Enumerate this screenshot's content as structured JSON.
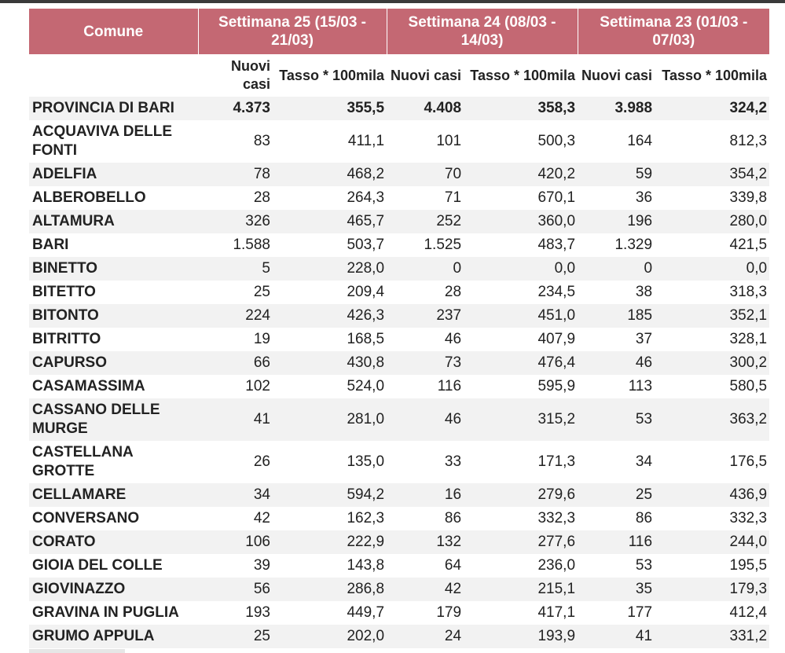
{
  "table": {
    "header": {
      "comune_label": "Comune",
      "weeks": [
        "Settimana 25 (15/03 - 21/03)",
        "Settimana 24 (08/03 - 14/03)",
        "Settimana 23 (01/03 - 07/03)"
      ],
      "new_cases_label": "Nuovi casi",
      "rate_label": "Tasso * 100mila"
    },
    "rows": [
      {
        "name": "PROVINCIA DI BARI",
        "w25_cases": "4.373",
        "w25_rate": "355,5",
        "w24_cases": "4.408",
        "w24_rate": "358,3",
        "w23_cases": "3.988",
        "w23_rate": "324,2"
      },
      {
        "name": "ACQUAVIVA DELLE FONTI",
        "w25_cases": "83",
        "w25_rate": "411,1",
        "w24_cases": "101",
        "w24_rate": "500,3",
        "w23_cases": "164",
        "w23_rate": "812,3"
      },
      {
        "name": "ADELFIA",
        "w25_cases": "78",
        "w25_rate": "468,2",
        "w24_cases": "70",
        "w24_rate": "420,2",
        "w23_cases": "59",
        "w23_rate": "354,2"
      },
      {
        "name": "ALBEROBELLO",
        "w25_cases": "28",
        "w25_rate": "264,3",
        "w24_cases": "71",
        "w24_rate": "670,1",
        "w23_cases": "36",
        "w23_rate": "339,8"
      },
      {
        "name": "ALTAMURA",
        "w25_cases": "326",
        "w25_rate": "465,7",
        "w24_cases": "252",
        "w24_rate": "360,0",
        "w23_cases": "196",
        "w23_rate": "280,0"
      },
      {
        "name": "BARI",
        "w25_cases": "1.588",
        "w25_rate": "503,7",
        "w24_cases": "1.525",
        "w24_rate": "483,7",
        "w23_cases": "1.329",
        "w23_rate": "421,5"
      },
      {
        "name": "BINETTO",
        "w25_cases": "5",
        "w25_rate": "228,0",
        "w24_cases": "0",
        "w24_rate": "0,0",
        "w23_cases": "0",
        "w23_rate": "0,0"
      },
      {
        "name": "BITETTO",
        "w25_cases": "25",
        "w25_rate": "209,4",
        "w24_cases": "28",
        "w24_rate": "234,5",
        "w23_cases": "38",
        "w23_rate": "318,3"
      },
      {
        "name": "BITONTO",
        "w25_cases": "224",
        "w25_rate": "426,3",
        "w24_cases": "237",
        "w24_rate": "451,0",
        "w23_cases": "185",
        "w23_rate": "352,1"
      },
      {
        "name": "BITRITTO",
        "w25_cases": "19",
        "w25_rate": "168,5",
        "w24_cases": "46",
        "w24_rate": "407,9",
        "w23_cases": "37",
        "w23_rate": "328,1"
      },
      {
        "name": "CAPURSO",
        "w25_cases": "66",
        "w25_rate": "430,8",
        "w24_cases": "73",
        "w24_rate": "476,4",
        "w23_cases": "46",
        "w23_rate": "300,2"
      },
      {
        "name": "CASAMASSIMA",
        "w25_cases": "102",
        "w25_rate": "524,0",
        "w24_cases": "116",
        "w24_rate": "595,9",
        "w23_cases": "113",
        "w23_rate": "580,5"
      },
      {
        "name": "CASSANO DELLE MURGE",
        "w25_cases": "41",
        "w25_rate": "281,0",
        "w24_cases": "46",
        "w24_rate": "315,2",
        "w23_cases": "53",
        "w23_rate": "363,2"
      },
      {
        "name": "CASTELLANA GROTTE",
        "w25_cases": "26",
        "w25_rate": "135,0",
        "w24_cases": "33",
        "w24_rate": "171,3",
        "w23_cases": "34",
        "w23_rate": "176,5"
      },
      {
        "name": "CELLAMARE",
        "w25_cases": "34",
        "w25_rate": "594,2",
        "w24_cases": "16",
        "w24_rate": "279,6",
        "w23_cases": "25",
        "w23_rate": "436,9"
      },
      {
        "name": "CONVERSANO",
        "w25_cases": "42",
        "w25_rate": "162,3",
        "w24_cases": "86",
        "w24_rate": "332,3",
        "w23_cases": "86",
        "w23_rate": "332,3"
      },
      {
        "name": "CORATO",
        "w25_cases": "106",
        "w25_rate": "222,9",
        "w24_cases": "132",
        "w24_rate": "277,6",
        "w23_cases": "116",
        "w23_rate": "244,0"
      },
      {
        "name": "GIOIA DEL COLLE",
        "w25_cases": "39",
        "w25_rate": "143,8",
        "w24_cases": "64",
        "w24_rate": "236,0",
        "w23_cases": "53",
        "w23_rate": "195,5"
      },
      {
        "name": "GIOVINAZZO",
        "w25_cases": "56",
        "w25_rate": "286,8",
        "w24_cases": "42",
        "w24_rate": "215,1",
        "w23_cases": "35",
        "w23_rate": "179,3"
      },
      {
        "name": "GRAVINA IN PUGLIA",
        "w25_cases": "193",
        "w25_rate": "449,7",
        "w24_cases": "179",
        "w24_rate": "417,1",
        "w23_cases": "177",
        "w23_rate": "412,4"
      },
      {
        "name": "GRUMO APPULA",
        "w25_cases": "25",
        "w25_rate": "202,0",
        "w24_cases": "24",
        "w24_rate": "193,9",
        "w23_cases": "41",
        "w23_rate": "331,2"
      }
    ]
  }
}
